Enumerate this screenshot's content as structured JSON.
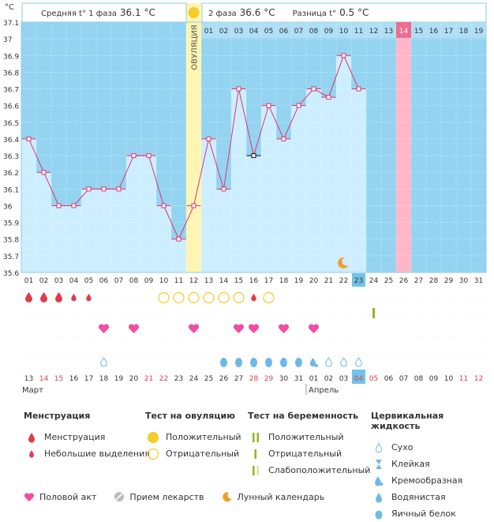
{
  "header": {
    "unit": "°C",
    "phase1_label": "Средняя t° 1 фаза",
    "phase1_value": "36.1 °C",
    "phase2_label": "2 фаза",
    "phase2_value": "36.6 °C",
    "diff_label": "Разница t°",
    "diff_value": "0.5 °C",
    "ovulation_label": "ОВУЛЯЦИЯ"
  },
  "chart_data": {
    "type": "line",
    "ylabel": "°C",
    "ylim": [
      35.6,
      37.1
    ],
    "yticks": [
      "37.1",
      "37",
      "36.9",
      "36.8",
      "36.7",
      "36.6",
      "36.5",
      "36.4",
      "36.3",
      "36.2",
      "36.1",
      "36",
      "35.9",
      "35.8",
      "35.7",
      "35.6"
    ],
    "cycle_days": [
      "01",
      "02",
      "03",
      "04",
      "05",
      "06",
      "07",
      "08",
      "09",
      "10",
      "11",
      "12",
      "13",
      "14",
      "15",
      "16",
      "17",
      "18",
      "19",
      "20",
      "21",
      "22",
      "23",
      "24",
      "25",
      "26",
      "27",
      "28",
      "29",
      "30",
      "31"
    ],
    "values": [
      36.4,
      36.2,
      36.0,
      36.0,
      36.1,
      36.1,
      36.1,
      36.3,
      36.3,
      36.0,
      35.8,
      36.0,
      36.4,
      36.1,
      36.7,
      36.3,
      36.6,
      36.4,
      36.6,
      36.7,
      36.65,
      36.9,
      36.7,
      null,
      null,
      null,
      null,
      null,
      null,
      null,
      null
    ],
    "marked_day_index": 15,
    "ovulation_day_index": 11,
    "current_day_index": 22,
    "expected_period_day_index": 25,
    "phase2_day_labels": [
      "01",
      "02",
      "03",
      "04",
      "05",
      "06",
      "07",
      "08",
      "09",
      "10",
      "11",
      "12",
      "13",
      "14",
      "15",
      "16",
      "17",
      "18",
      "19"
    ],
    "moon_day_index": 21,
    "calendar_dates": [
      "13",
      "14",
      "15",
      "16",
      "17",
      "18",
      "19",
      "20",
      "21",
      "22",
      "23",
      "24",
      "25",
      "26",
      "27",
      "28",
      "29",
      "30",
      "31",
      "01",
      "02",
      "03",
      "04",
      "05",
      "06",
      "07",
      "08",
      "09",
      "10",
      "11",
      "12"
    ],
    "red_date_indices": [
      1,
      2,
      8,
      9,
      15,
      16,
      22,
      23,
      29,
      30
    ],
    "highlight_date_index": 22,
    "month1": "Март",
    "month2": "Апрель",
    "month2_start_index": 19,
    "menstruation": [
      "heavy",
      "heavy",
      "heavy",
      "light",
      "light",
      "none",
      "none",
      "none",
      "none",
      "none",
      "none",
      "none",
      "none",
      "none",
      "none",
      "none",
      "none",
      "none",
      "none",
      "none",
      "none",
      "none",
      "none",
      "none",
      "none",
      "none",
      "none",
      "none",
      "none",
      "none",
      "none"
    ],
    "ovulation_test": [
      null,
      null,
      null,
      null,
      null,
      null,
      null,
      null,
      null,
      "negative",
      "negative",
      "negative",
      "negative",
      "negative",
      "negative",
      "light",
      "negative",
      null,
      null,
      null,
      null,
      null,
      null,
      null,
      null,
      null,
      null,
      null,
      null,
      null,
      null
    ],
    "pregnancy_test": [
      null,
      null,
      null,
      null,
      null,
      null,
      null,
      null,
      null,
      null,
      null,
      null,
      null,
      null,
      null,
      null,
      null,
      null,
      null,
      null,
      null,
      null,
      null,
      "negative",
      null,
      null,
      null,
      null,
      null,
      null,
      null
    ],
    "intercourse": [
      false,
      false,
      false,
      false,
      false,
      true,
      false,
      true,
      false,
      false,
      false,
      true,
      false,
      false,
      true,
      true,
      false,
      true,
      false,
      true,
      false,
      false,
      false,
      false,
      false,
      false,
      false,
      false,
      false,
      false,
      false
    ],
    "cervical": [
      null,
      null,
      null,
      null,
      null,
      "dry",
      null,
      null,
      null,
      null,
      null,
      null,
      null,
      "egg",
      "egg",
      "egg",
      "egg",
      "egg",
      "egg",
      "creamy",
      "dry",
      "dry",
      "dry",
      null,
      null,
      null,
      null,
      null,
      null,
      null,
      null
    ]
  },
  "legend": {
    "menstruation": {
      "title": "Менструация",
      "items": [
        "Менструация",
        "Небольшие выделения"
      ]
    },
    "ovulation_test": {
      "title": "Тест на овуляцию",
      "items": [
        "Положительный",
        "Отрицательный"
      ]
    },
    "pregnancy_test": {
      "title": "Тест на беременность",
      "items": [
        "Положительный",
        "Отрицательный",
        "Слабоположительный"
      ]
    },
    "cervical": {
      "title": "Цервикальная жидкость",
      "items": [
        "Сухо",
        "Клейкая",
        "Кремообразная",
        "Водянистая",
        "Яичный белок"
      ]
    },
    "bottom": [
      "Половой акт",
      "Прием лекарств",
      "Лунный календарь"
    ]
  },
  "colors": {
    "chart_bg": "#94d4f1",
    "bar": "#cdeeff",
    "line": "#e0336f",
    "ovulation": "#fff5b3",
    "period": "#ffb6c8",
    "today": "#6fc4e8",
    "red": "#e03c4b",
    "heart": "#f04fa1",
    "yellow": "#f5cc2a",
    "green": "#8cb820",
    "drop": "#6fb9e8"
  }
}
